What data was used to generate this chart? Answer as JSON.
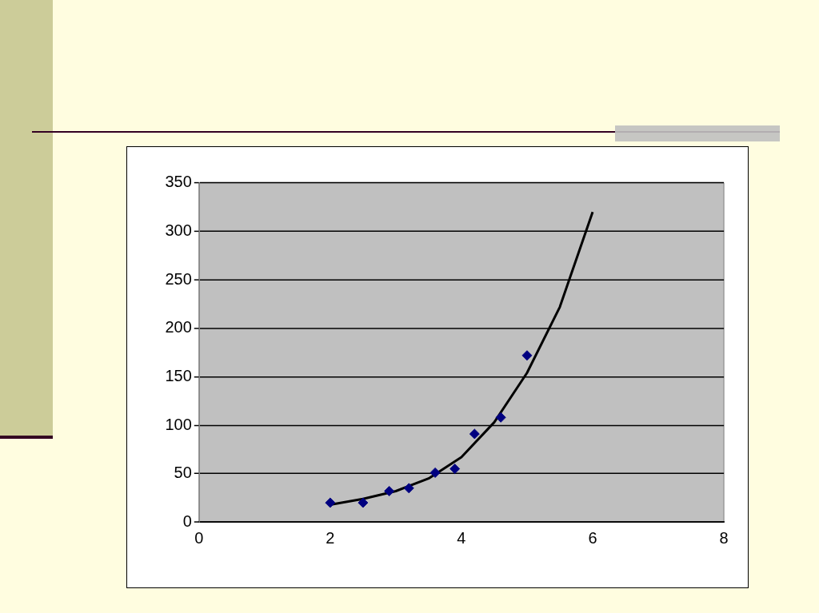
{
  "chart_data": {
    "type": "scatter",
    "xlim": [
      0,
      8
    ],
    "ylim": [
      0,
      350
    ],
    "xticks": [
      0,
      2,
      4,
      6,
      8
    ],
    "yticks": [
      0,
      50,
      100,
      150,
      200,
      250,
      300,
      350
    ],
    "grid": "y",
    "series": [
      {
        "type": "scatter",
        "color": "#000080",
        "marker": "diamond",
        "x": [
          2,
          2.5,
          2.9,
          3.2,
          3.6,
          3.9,
          4.2,
          4.6,
          5
        ],
        "values": [
          20,
          20,
          32,
          35,
          51,
          55,
          91,
          108,
          172
        ]
      },
      {
        "type": "line",
        "color": "#000000",
        "marker": "none",
        "line_style": "solid",
        "x": [
          2,
          2.5,
          3,
          3.5,
          4,
          4.5,
          5,
          5.5,
          6
        ],
        "values": [
          18,
          24,
          32,
          45,
          67,
          103,
          154,
          222,
          320
        ]
      }
    ]
  }
}
